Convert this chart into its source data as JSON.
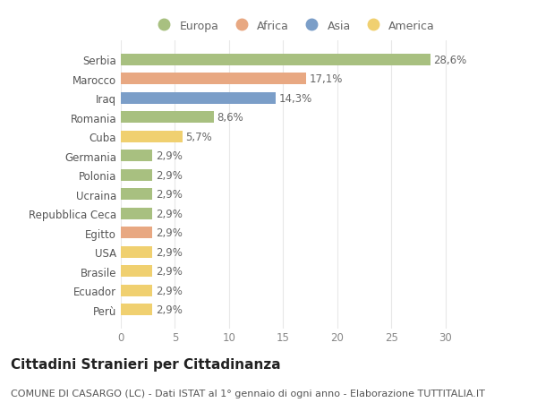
{
  "categories": [
    "Serbia",
    "Marocco",
    "Iraq",
    "Romania",
    "Cuba",
    "Germania",
    "Polonia",
    "Ucraina",
    "Repubblica Ceca",
    "Egitto",
    "USA",
    "Brasile",
    "Ecuador",
    "Perù"
  ],
  "values": [
    28.6,
    17.1,
    14.3,
    8.6,
    5.7,
    2.9,
    2.9,
    2.9,
    2.9,
    2.9,
    2.9,
    2.9,
    2.9,
    2.9
  ],
  "labels": [
    "28,6%",
    "17,1%",
    "14,3%",
    "8,6%",
    "5,7%",
    "2,9%",
    "2,9%",
    "2,9%",
    "2,9%",
    "2,9%",
    "2,9%",
    "2,9%",
    "2,9%",
    "2,9%"
  ],
  "colors": [
    "#a8c080",
    "#e8a882",
    "#7b9ec8",
    "#a8c080",
    "#f0d070",
    "#a8c080",
    "#a8c080",
    "#a8c080",
    "#a8c080",
    "#e8a882",
    "#f0d070",
    "#f0d070",
    "#f0d070",
    "#f0d070"
  ],
  "legend_labels": [
    "Europa",
    "Africa",
    "Asia",
    "America"
  ],
  "legend_colors": [
    "#a8c080",
    "#e8a882",
    "#7b9ec8",
    "#f0d070"
  ],
  "title": "Cittadini Stranieri per Cittadinanza",
  "subtitle": "COMUNE DI CASARGO (LC) - Dati ISTAT al 1° gennaio di ogni anno - Elaborazione TUTTITALIA.IT",
  "xlim": [
    0,
    32
  ],
  "xticks": [
    0,
    5,
    10,
    15,
    20,
    25,
    30
  ],
  "background_color": "#ffffff",
  "grid_color": "#e8e8e8",
  "bar_height": 0.62,
  "label_fontsize": 8.5,
  "tick_fontsize": 8.5,
  "title_fontsize": 11,
  "subtitle_fontsize": 8
}
